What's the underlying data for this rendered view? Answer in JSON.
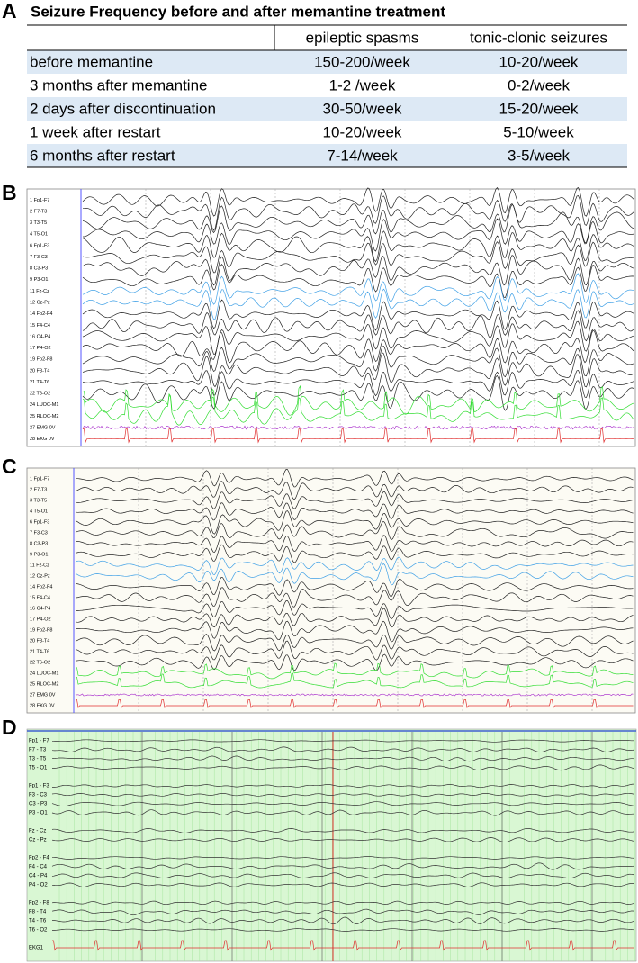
{
  "panel_labels": [
    "A",
    "B",
    "C",
    "D"
  ],
  "table": {
    "title": "Seizure Frequency before and after memantine treatment",
    "header": [
      "epileptic spasms",
      "tonic-clonic seizures"
    ],
    "rows": [
      [
        "before memantine",
        "150-200/week",
        "10-20/week"
      ],
      [
        "3 months after memantine",
        "1-2 /week",
        "0-2/week"
      ],
      [
        "2 days after discontinuation",
        "30-50/week",
        "15-20/week"
      ],
      [
        "1 week after restart",
        "10-20/week",
        "5-10/week"
      ],
      [
        "6 months after restart",
        "7-14/week",
        "3-5/week"
      ]
    ]
  },
  "eeg_b": {
    "channels": [
      "1 Fp1-F7",
      "2 F7-T3",
      "3 T3-T5",
      "4 T5-O1",
      "6 Fp1-F3",
      "7 F3-C3",
      "8 C3-P3",
      "9 P3-O1",
      "11 Fz-Cz",
      "12 Cz-Pz",
      "14 Fp2-F4",
      "15 F4-C4",
      "16 C4-P4",
      "17 P4-O2",
      "19 Fp2-F8",
      "20 F8-T4",
      "21 T4-T6",
      "22 T6-O2",
      "24 LUOC-M1",
      "25 RLOC-M2",
      "27 EMG 0V",
      "28 EKG 0V"
    ]
  },
  "eeg_c": {
    "channels": [
      "1 Fp1-F7",
      "2 F7-T3",
      "3 T3-T5",
      "4 T5-O1",
      "6 Fp1-F3",
      "7 F3-C3",
      "8 C3-P3",
      "9 P3-O1",
      "11 Fz-Cz",
      "12 Cz-Pz",
      "14 Fp2-F4",
      "15 F4-C4",
      "16 C4-P4",
      "17 P4-O2",
      "19 Fp2-F8",
      "20 F8-T4",
      "21 T4-T6",
      "22 T6-O2",
      "24 LUOC-M1",
      "25 RLOC-M2",
      "27 EMG 0V",
      "28 EKG 0V"
    ]
  },
  "eeg_d": {
    "channels": [
      "Fp1 - F7",
      "F7 - T3",
      "T3 - T5",
      "T5 - O1",
      "Fp1 - F3",
      "F3 - C3",
      "C3 - P3",
      "P3 - O1",
      "Fz - Cz",
      "Cz - Pz",
      "Fp2 - F4",
      "F4 - C4",
      "C4 - P4",
      "P4 - O2",
      "Fp2 - F8",
      "F8 - T4",
      "T4 - T6",
      "T6 - O2",
      "EKG1"
    ]
  }
}
